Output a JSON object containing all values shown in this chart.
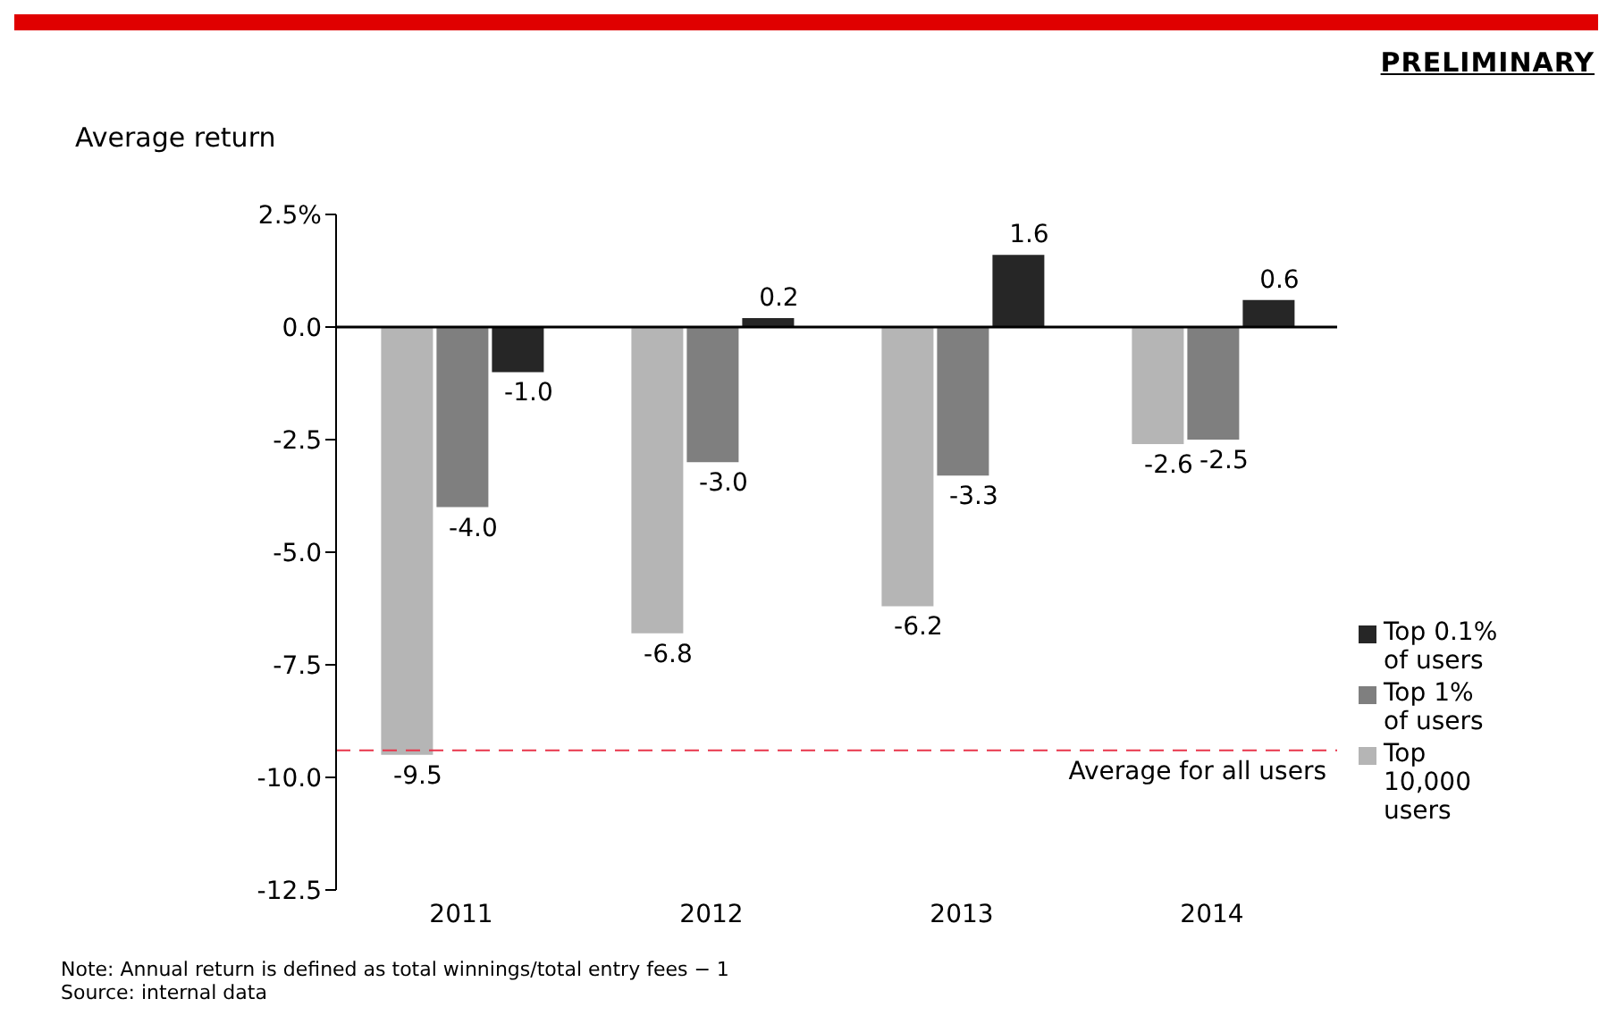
{
  "chart_data": {
    "type": "bar",
    "ylabel": "Average return",
    "categories": [
      "2011",
      "2012",
      "2013",
      "2014"
    ],
    "series": [
      {
        "name": "Top 10,000 users",
        "color": "#b5b5b5",
        "values": [
          -9.5,
          -6.8,
          -6.2,
          -2.6
        ],
        "value_labels": [
          "-9.5",
          "-6.8",
          "-6.2",
          "-2.6"
        ]
      },
      {
        "name": "Top 1% of users",
        "color": "#7f7f7f",
        "values": [
          -4.0,
          -3.0,
          -3.3,
          -2.5
        ],
        "value_labels": [
          "-4.0",
          "-3.0",
          "-3.3",
          "-2.5"
        ]
      },
      {
        "name": "Top 0.1% of users",
        "color": "#262626",
        "values": [
          -1.0,
          0.2,
          1.6,
          0.6
        ],
        "value_labels": [
          "-1.0",
          "0.2",
          "1.6",
          "0.6"
        ]
      }
    ],
    "ylim": [
      -12.5,
      2.5
    ],
    "yticks": [
      {
        "value": -12.5,
        "label": "-12.5"
      },
      {
        "value": -10,
        "label": "-10.0"
      },
      {
        "value": -7.5,
        "label": "-7.5"
      },
      {
        "value": -5,
        "label": "-5.0"
      },
      {
        "value": -2.5,
        "label": "-2.5"
      },
      {
        "value": 0,
        "label": "0.0"
      },
      {
        "value": 2.5,
        "label": "2.5%"
      }
    ],
    "legend": "right",
    "ref_lines": [
      {
        "axis": "y",
        "value": -9.4,
        "label": "Average for all users",
        "color": "#e8344a",
        "line_style": "dashed"
      }
    ],
    "annotations": [
      "PRELIMINARY",
      "Note: Annual return is defined as total winnings/total entry fees − 1",
      "Source: internal data"
    ]
  }
}
